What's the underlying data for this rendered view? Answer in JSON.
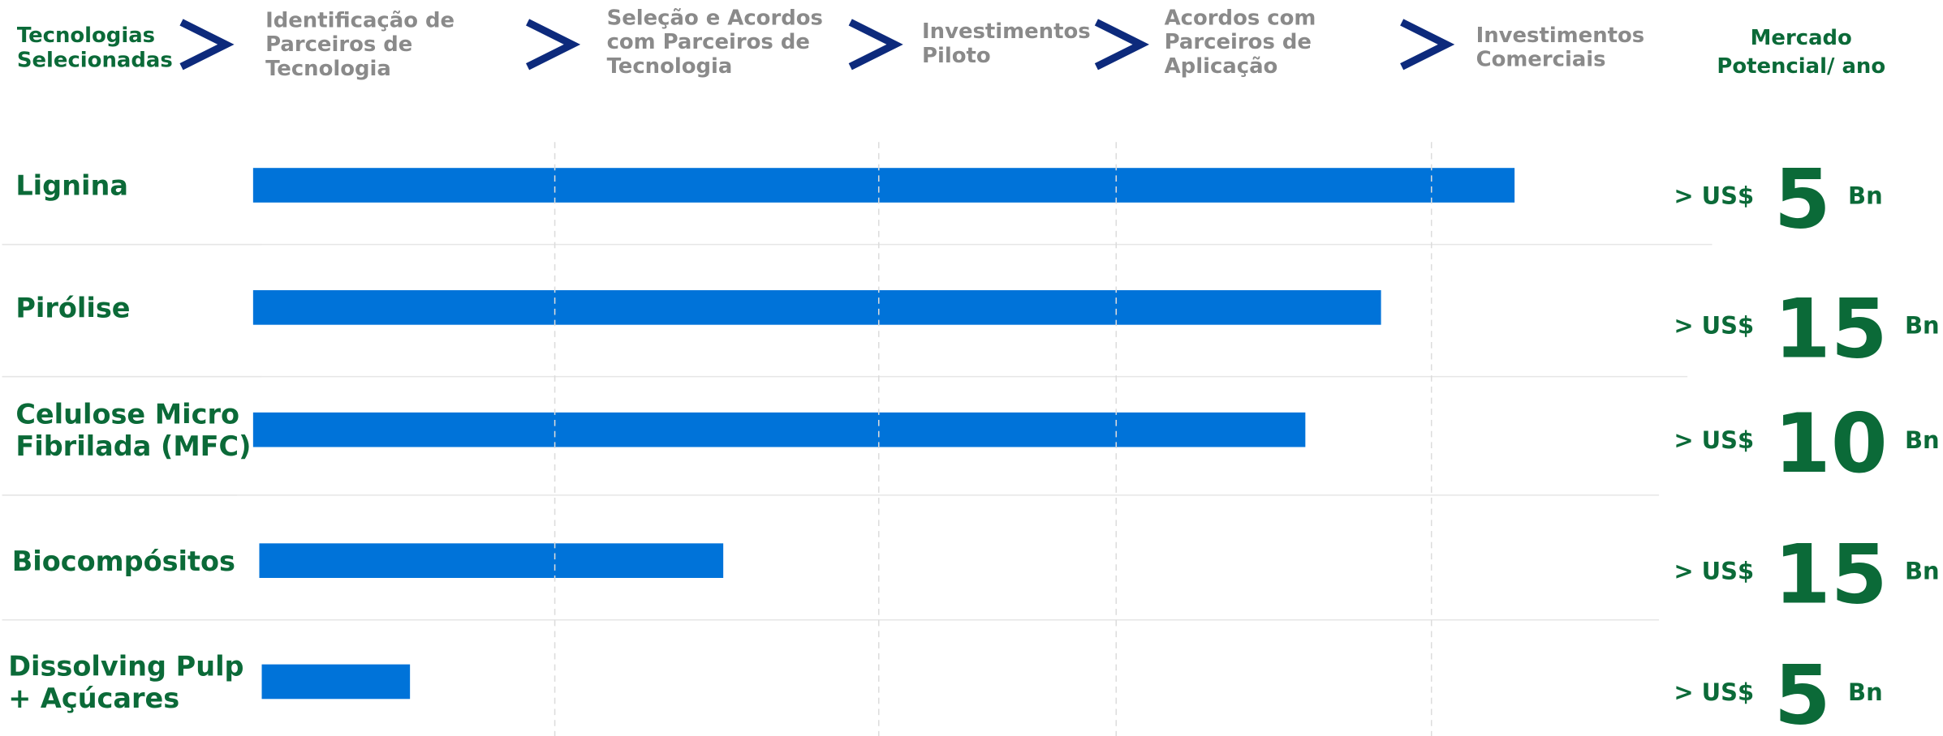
{
  "header": {
    "first": [
      "Tecnologias",
      "Selecionadas"
    ],
    "stages": [
      [
        "Identificação de",
        "Parceiros de",
        "Tecnologia"
      ],
      [
        "Seleção e Acordos",
        "com Parceiros de",
        "Tecnologia"
      ],
      [
        "Investimentos",
        "Piloto"
      ],
      [
        "Acordos com",
        "Parceiros de",
        "Aplicação"
      ],
      [
        "Investimentos",
        "Comerciais"
      ]
    ],
    "market": [
      "Mercado",
      "Potencial/ ano"
    ]
  },
  "rows": [
    {
      "label": [
        "Lignina"
      ],
      "progress": 4.3,
      "prefix": "> US$",
      "amount": 5,
      "unit": "Bn"
    },
    {
      "label": [
        "Pirólise"
      ],
      "progress": 3.84,
      "prefix": "> US$",
      "amount": 15,
      "unit": "Bn"
    },
    {
      "label": [
        "Celulose Micro",
        "Fibrilada (MFC)"
      ],
      "progress": 3.6,
      "prefix": "> US$",
      "amount": 10,
      "unit": "Bn"
    },
    {
      "label": [
        "Biocompósitos"
      ],
      "progress": 1.52,
      "prefix": "> US$",
      "amount": 15,
      "unit": "Bn"
    },
    {
      "label": [
        "Dissolving Pulp",
        "+ Açúcares"
      ],
      "progress": 0.52,
      "prefix": "> US$",
      "amount": 5,
      "unit": "Bn"
    }
  ]
}
